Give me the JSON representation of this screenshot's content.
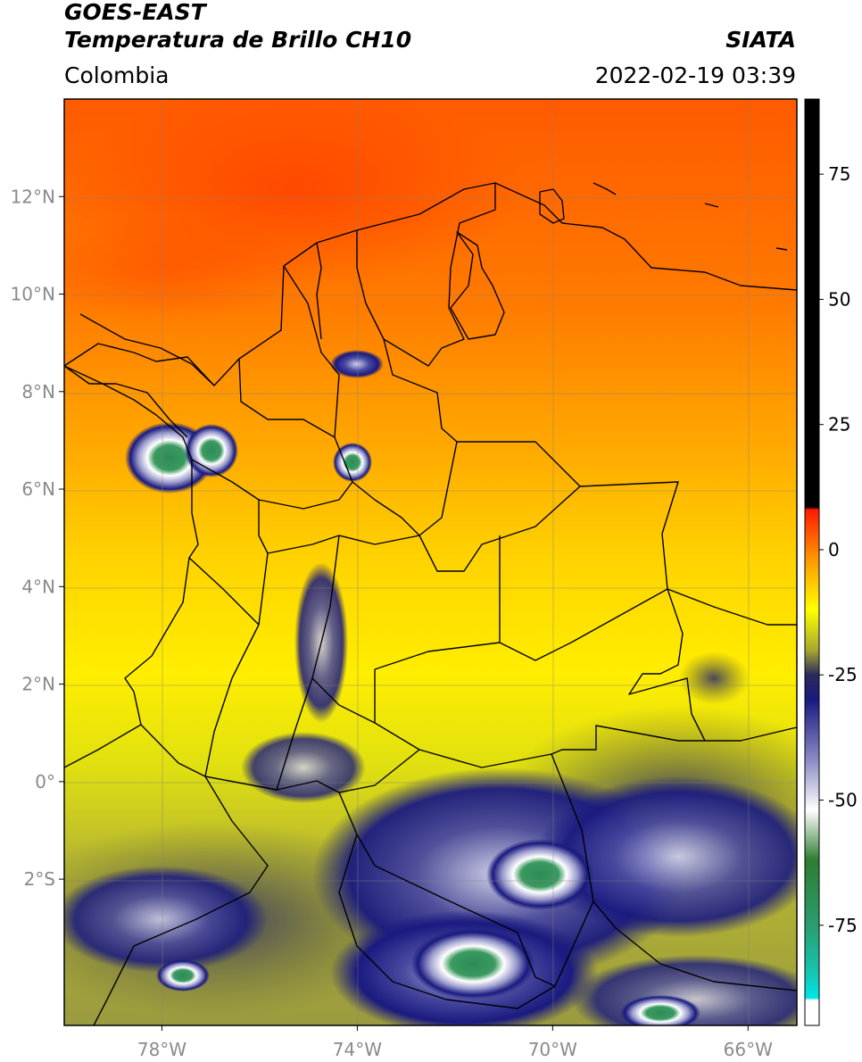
{
  "header": {
    "satellite": "GOES-EAST",
    "product": "Temperatura de Brillo CH10",
    "region": "Colombia",
    "organization": "SIATA",
    "timestamp": "2022-02-19 03:39"
  },
  "map": {
    "lon_range": [
      -80,
      -65
    ],
    "lat_range": [
      -5,
      14
    ],
    "lat_ticks": [
      {
        "value": 12,
        "label": "12°N"
      },
      {
        "value": 10,
        "label": "10°N"
      },
      {
        "value": 8,
        "label": "8°N"
      },
      {
        "value": 6,
        "label": "6°N"
      },
      {
        "value": 4,
        "label": "4°N"
      },
      {
        "value": 2,
        "label": "2°N"
      },
      {
        "value": 0,
        "label": "0°"
      },
      {
        "value": -2,
        "label": "2°S"
      }
    ],
    "lon_ticks": [
      {
        "value": -78,
        "label": "78°W"
      },
      {
        "value": -74,
        "label": "74°W"
      },
      {
        "value": -70,
        "label": "70°W"
      },
      {
        "value": -66,
        "label": "66°W"
      }
    ]
  },
  "colorbar": {
    "range": [
      -95,
      90
    ],
    "ticks": [
      {
        "value": 75,
        "label": "75"
      },
      {
        "value": 50,
        "label": "50"
      },
      {
        "value": 25,
        "label": "25"
      },
      {
        "value": 0,
        "label": "0"
      },
      {
        "value": -25,
        "label": "-25"
      },
      {
        "value": -50,
        "label": "-50"
      },
      {
        "value": -75,
        "label": "-75"
      }
    ],
    "stops": [
      {
        "value": -95,
        "color": "#ffffff"
      },
      {
        "value": -90,
        "color": "#ffffff"
      },
      {
        "value": -89.5,
        "color": "#00e5e5"
      },
      {
        "value": -85,
        "color": "#14c8b4"
      },
      {
        "value": -75,
        "color": "#2a9d70"
      },
      {
        "value": -62,
        "color": "#2e7d32"
      },
      {
        "value": -52,
        "color": "#ffffff"
      },
      {
        "value": -42,
        "color": "#8b8bc4"
      },
      {
        "value": -30,
        "color": "#1a1a80"
      },
      {
        "value": -25,
        "color": "#2a2a5a"
      },
      {
        "value": -20,
        "color": "#a8a830"
      },
      {
        "value": -12,
        "color": "#ffff00"
      },
      {
        "value": -2,
        "color": "#ff9900"
      },
      {
        "value": 8,
        "color": "#ff1a00"
      },
      {
        "value": 8.5,
        "color": "#000000"
      },
      {
        "value": 90,
        "color": "#000000"
      }
    ]
  },
  "legend_colors": {
    "warm": "#ff4400",
    "mid": "#ffcc00",
    "cool": "#1a1a80",
    "cold": "#2e7d32"
  }
}
